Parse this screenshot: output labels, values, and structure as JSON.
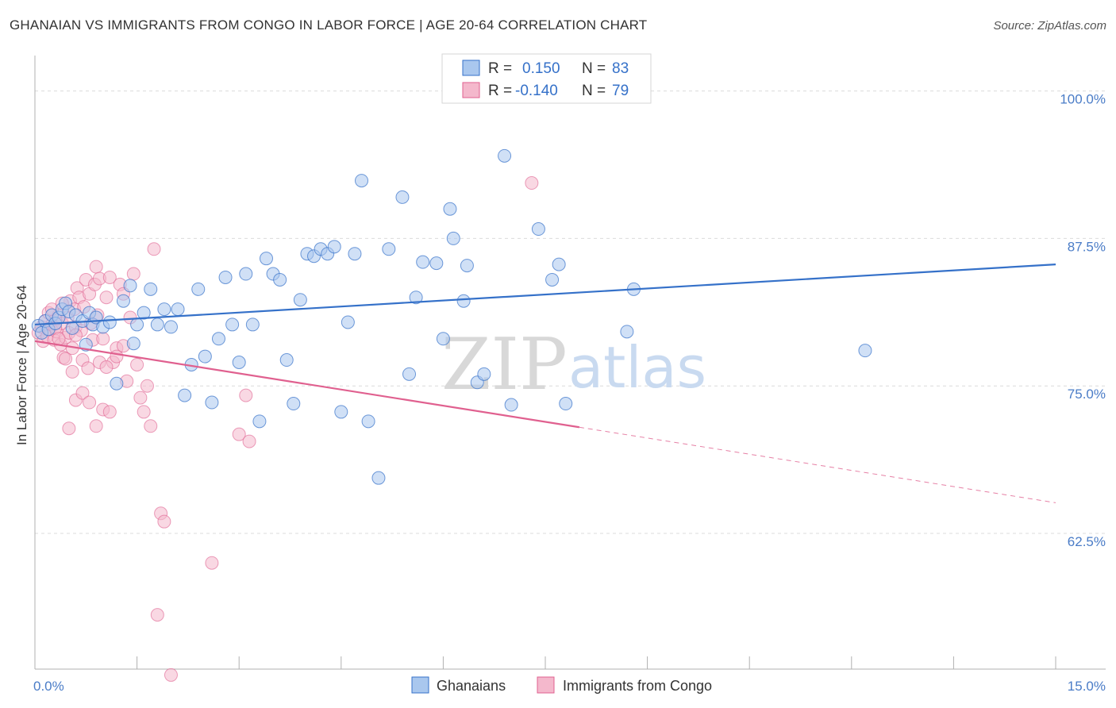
{
  "title": "GHANAIAN VS IMMIGRANTS FROM CONGO IN LABOR FORCE | AGE 20-64 CORRELATION CHART",
  "source": "Source: ZipAtlas.com",
  "watermark": {
    "zip": "ZIP",
    "atlas": "atlas"
  },
  "colors": {
    "blue": "#3571c9",
    "blue_fill": "#a9c7ee",
    "pink": "#e0608f",
    "pink_fill": "#f4b8cc",
    "tick": "#4a7cc7"
  },
  "legend": {
    "rows": [
      {
        "r_label": "R =",
        "r_value": "0.150",
        "n_label": "N =",
        "n_value": "83"
      },
      {
        "r_label": "R =",
        "r_value": "-0.140",
        "n_label": "N =",
        "n_value": "79"
      }
    ]
  },
  "bottom_legend": [
    "Ghanaians",
    "Immigrants from Congo"
  ],
  "chart_data": {
    "type": "scatter",
    "xlabel": "",
    "ylabel": "In Labor Force | Age 20-64",
    "xlim": [
      0,
      15
    ],
    "ylim": [
      51,
      103
    ],
    "x_tick_labels": [
      "0.0%",
      "15.0%"
    ],
    "y_ticks": [
      {
        "value": 100,
        "label": "100.0%"
      },
      {
        "value": 87.5,
        "label": "87.5%"
      },
      {
        "value": 75,
        "label": "75.0%"
      },
      {
        "value": 62.5,
        "label": "62.5%"
      }
    ],
    "series": [
      {
        "name": "Ghanaians",
        "color": "#3571c9",
        "trend": {
          "x": [
            0,
            15
          ],
          "y": [
            80.2,
            85.3
          ]
        },
        "points": [
          [
            0.05,
            80.1
          ],
          [
            0.1,
            79.5
          ],
          [
            0.15,
            80.5
          ],
          [
            0.2,
            79.8
          ],
          [
            0.25,
            81.0
          ],
          [
            0.3,
            80.3
          ],
          [
            0.35,
            80.8
          ],
          [
            0.4,
            81.5
          ],
          [
            0.45,
            82.0
          ],
          [
            0.5,
            81.3
          ],
          [
            0.55,
            79.9
          ],
          [
            0.6,
            81.0
          ],
          [
            0.7,
            80.5
          ],
          [
            0.75,
            78.5
          ],
          [
            0.8,
            81.2
          ],
          [
            0.85,
            80.2
          ],
          [
            0.9,
            80.8
          ],
          [
            1.0,
            80.0
          ],
          [
            1.1,
            80.4
          ],
          [
            1.2,
            75.2
          ],
          [
            1.3,
            82.2
          ],
          [
            1.4,
            83.5
          ],
          [
            1.45,
            78.6
          ],
          [
            1.5,
            80.2
          ],
          [
            1.6,
            81.2
          ],
          [
            1.7,
            83.2
          ],
          [
            1.8,
            80.2
          ],
          [
            1.9,
            81.5
          ],
          [
            2.0,
            80.0
          ],
          [
            2.1,
            81.5
          ],
          [
            2.2,
            74.2
          ],
          [
            2.3,
            76.8
          ],
          [
            2.4,
            83.2
          ],
          [
            2.5,
            77.5
          ],
          [
            2.6,
            73.6
          ],
          [
            2.7,
            79.0
          ],
          [
            2.8,
            84.2
          ],
          [
            2.9,
            80.2
          ],
          [
            3.0,
            77.0
          ],
          [
            3.1,
            84.5
          ],
          [
            3.2,
            80.2
          ],
          [
            3.3,
            72.0
          ],
          [
            3.4,
            85.8
          ],
          [
            3.5,
            84.5
          ],
          [
            3.6,
            84.0
          ],
          [
            3.7,
            77.2
          ],
          [
            3.8,
            73.5
          ],
          [
            3.9,
            82.3
          ],
          [
            4.0,
            86.2
          ],
          [
            4.1,
            86.0
          ],
          [
            4.2,
            86.6
          ],
          [
            4.3,
            86.2
          ],
          [
            4.4,
            86.8
          ],
          [
            4.5,
            72.8
          ],
          [
            4.6,
            80.4
          ],
          [
            4.7,
            86.2
          ],
          [
            4.8,
            92.4
          ],
          [
            4.9,
            72.0
          ],
          [
            5.05,
            67.2
          ],
          [
            5.2,
            86.6
          ],
          [
            5.4,
            91.0
          ],
          [
            5.5,
            76.0
          ],
          [
            5.6,
            82.5
          ],
          [
            5.7,
            85.5
          ],
          [
            5.9,
            85.4
          ],
          [
            6.0,
            79.0
          ],
          [
            6.1,
            90.0
          ],
          [
            6.15,
            87.5
          ],
          [
            6.3,
            82.2
          ],
          [
            6.35,
            85.2
          ],
          [
            6.5,
            75.3
          ],
          [
            6.6,
            76.0
          ],
          [
            6.9,
            94.5
          ],
          [
            7.0,
            73.4
          ],
          [
            7.4,
            88.3
          ],
          [
            7.6,
            84.0
          ],
          [
            7.7,
            85.3
          ],
          [
            7.8,
            73.5
          ],
          [
            8.7,
            79.6
          ],
          [
            8.8,
            83.2
          ],
          [
            12.2,
            78.0
          ]
        ]
      },
      {
        "name": "Immigrants from Congo",
        "color": "#e0608f",
        "trend": {
          "x": [
            0,
            8.0
          ],
          "y": [
            78.8,
            71.5
          ]
        },
        "trend_dashed": {
          "x": [
            8.0,
            15
          ],
          "y": [
            71.5,
            65.1
          ]
        },
        "points": [
          [
            0.05,
            79.5
          ],
          [
            0.1,
            80.0
          ],
          [
            0.12,
            78.8
          ],
          [
            0.15,
            80.5
          ],
          [
            0.18,
            79.2
          ],
          [
            0.2,
            81.2
          ],
          [
            0.22,
            79.8
          ],
          [
            0.25,
            80.2
          ],
          [
            0.28,
            78.9
          ],
          [
            0.3,
            80.6
          ],
          [
            0.32,
            79.6
          ],
          [
            0.35,
            81.0
          ],
          [
            0.38,
            78.5
          ],
          [
            0.4,
            80.3
          ],
          [
            0.42,
            77.4
          ],
          [
            0.45,
            79.1
          ],
          [
            0.48,
            80.8
          ],
          [
            0.5,
            79.5
          ],
          [
            0.52,
            82.2
          ],
          [
            0.55,
            78.2
          ],
          [
            0.58,
            81.5
          ],
          [
            0.6,
            80.0
          ],
          [
            0.62,
            83.3
          ],
          [
            0.65,
            82.5
          ],
          [
            0.68,
            79.7
          ],
          [
            0.7,
            77.2
          ],
          [
            0.72,
            81.7
          ],
          [
            0.75,
            84.0
          ],
          [
            0.78,
            76.5
          ],
          [
            0.8,
            82.8
          ],
          [
            0.82,
            80.3
          ],
          [
            0.85,
            78.9
          ],
          [
            0.88,
            83.6
          ],
          [
            0.9,
            85.1
          ],
          [
            0.92,
            81.0
          ],
          [
            0.95,
            84.1
          ],
          [
            1.0,
            79.0
          ],
          [
            1.05,
            82.5
          ],
          [
            1.1,
            84.2
          ],
          [
            1.15,
            77.0
          ],
          [
            1.2,
            78.2
          ],
          [
            1.25,
            83.6
          ],
          [
            1.3,
            82.8
          ],
          [
            1.35,
            75.4
          ],
          [
            1.4,
            80.8
          ],
          [
            1.45,
            84.5
          ],
          [
            1.5,
            76.8
          ],
          [
            1.55,
            74.0
          ],
          [
            1.6,
            72.8
          ],
          [
            1.65,
            75.0
          ],
          [
            1.7,
            71.6
          ],
          [
            1.75,
            86.6
          ],
          [
            1.8,
            55.6
          ],
          [
            1.85,
            64.2
          ],
          [
            1.9,
            63.5
          ],
          [
            0.5,
            71.4
          ],
          [
            0.6,
            73.8
          ],
          [
            0.7,
            74.4
          ],
          [
            0.8,
            73.6
          ],
          [
            0.9,
            71.6
          ],
          [
            1.0,
            73.0
          ],
          [
            1.1,
            72.8
          ],
          [
            0.95,
            77.0
          ],
          [
            1.05,
            76.6
          ],
          [
            1.2,
            77.5
          ],
          [
            0.45,
            77.3
          ],
          [
            0.55,
            76.2
          ],
          [
            2.6,
            60.0
          ],
          [
            3.0,
            70.9
          ],
          [
            3.1,
            74.2
          ],
          [
            3.15,
            70.3
          ],
          [
            2.0,
            50.5
          ],
          [
            7.3,
            92.2
          ],
          [
            0.3,
            79.9
          ],
          [
            0.35,
            79.0
          ],
          [
            0.25,
            81.5
          ],
          [
            0.4,
            82.0
          ],
          [
            1.3,
            78.4
          ],
          [
            0.6,
            79.3
          ]
        ]
      }
    ]
  }
}
